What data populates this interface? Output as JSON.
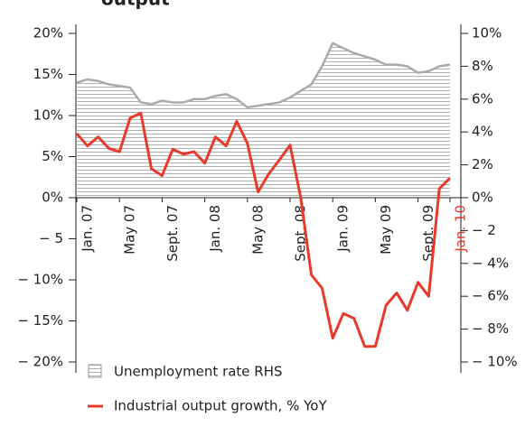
{
  "chart_data": {
    "type": "line",
    "title": "output",
    "categories": [
      "Jan. 07",
      null,
      null,
      null,
      "May 07",
      null,
      null,
      null,
      "Sept. 07",
      null,
      null,
      null,
      "Jan. 08",
      null,
      null,
      null,
      "May 08",
      null,
      null,
      null,
      "Sept. 08",
      null,
      null,
      null,
      "Jan. 09",
      null,
      null,
      null,
      "May 09",
      null,
      null,
      null,
      "Sept. 09",
      null,
      null,
      "Jan. 10"
    ],
    "series": [
      {
        "name": "Unemployment rate RHS",
        "color": "#aaaaaa",
        "axis": "y2",
        "values": [
          7.0,
          7.2,
          7.1,
          6.9,
          6.8,
          6.7,
          5.8,
          5.7,
          5.9,
          5.8,
          5.8,
          6.0,
          6.0,
          6.2,
          6.3,
          6.0,
          5.5,
          5.6,
          5.7,
          5.8,
          6.1,
          6.5,
          6.9,
          8.0,
          9.4,
          9.1,
          8.8,
          8.6,
          8.4,
          8.1,
          8.1,
          8.0,
          7.6,
          7.7,
          8.0,
          8.1
        ]
      },
      {
        "name": "Industrial output growth, % YoY",
        "color": "#e8392a",
        "values": [
          7.8,
          6.3,
          7.4,
          6.0,
          5.6,
          9.7,
          10.3,
          3.5,
          2.7,
          5.9,
          5.3,
          5.6,
          4.2,
          7.4,
          6.3,
          9.3,
          6.6,
          0.7,
          2.9,
          4.6,
          6.4,
          0.0,
          -9.4,
          -11.0,
          -17.1,
          -14.1,
          -14.7,
          -18.1,
          -18.1,
          -13.1,
          -11.6,
          -13.7,
          -10.3,
          -12.0,
          1.1,
          2.4
        ]
      }
    ],
    "ylim": [
      -20,
      20
    ],
    "yticks": [
      {
        "value": 20,
        "label": "20%"
      },
      {
        "value": 15,
        "label": "15%"
      },
      {
        "value": 10,
        "label": "10%"
      },
      {
        "value": 5,
        "label": "5%"
      },
      {
        "value": 0,
        "label": "0%"
      },
      {
        "value": -5,
        "label": "− 5"
      },
      {
        "value": -10,
        "label": "− 10%"
      },
      {
        "value": -15,
        "label": "− 15%"
      },
      {
        "value": -20,
        "label": "− 20%"
      }
    ],
    "y2lim": [
      -10,
      10
    ],
    "y2ticks": [
      {
        "value": 10,
        "label": "10%"
      },
      {
        "value": 8,
        "label": "8%"
      },
      {
        "value": 6,
        "label": "6%"
      },
      {
        "value": 4,
        "label": "4%"
      },
      {
        "value": 2,
        "label": "2%"
      },
      {
        "value": 0,
        "label": "0%"
      },
      {
        "value": -2,
        "label": "− 2"
      },
      {
        "value": -4,
        "label": "− 4%"
      },
      {
        "value": -6,
        "label": "− 6%"
      },
      {
        "value": -8,
        "label": "− 8%"
      },
      {
        "value": -10,
        "label": "− 10%"
      }
    ]
  }
}
